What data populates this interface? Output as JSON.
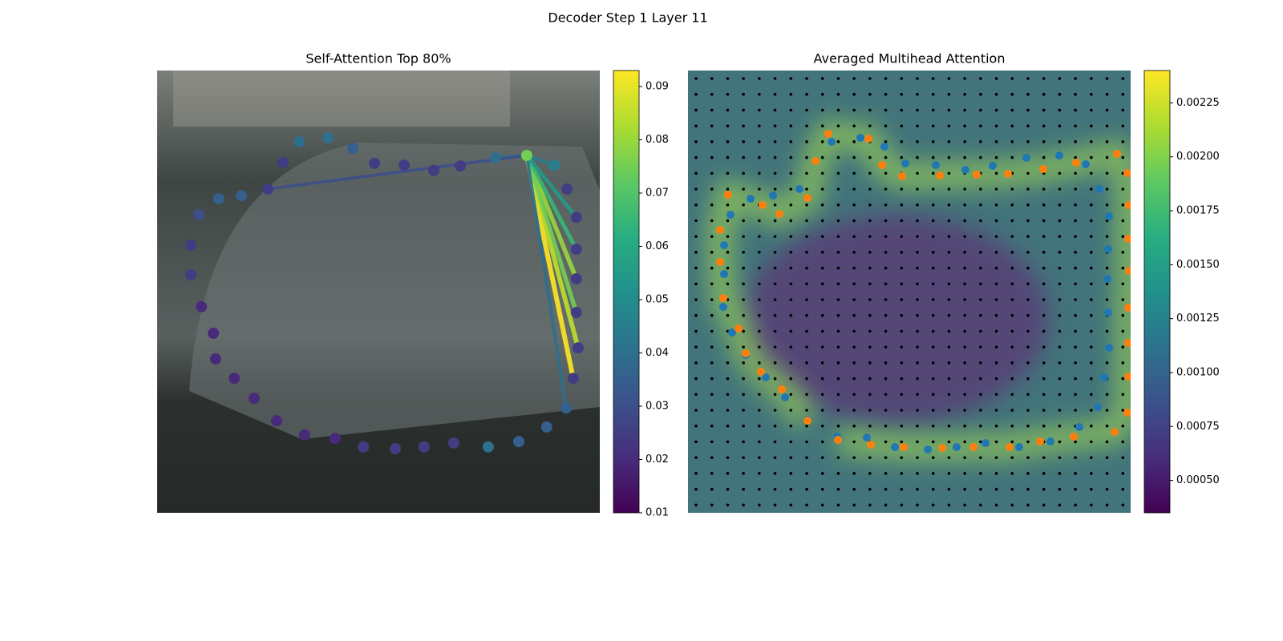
{
  "title": "Decoder Step 1 Layer 11",
  "chart_data": [
    {
      "type": "attention-lines",
      "title": "Self-Attention Top 80%",
      "xlim": [
        0,
        100
      ],
      "ylim": [
        100,
        0
      ],
      "colormap": "viridis",
      "clim": [
        0.01,
        0.093
      ],
      "cticks": [
        0.01,
        0.02,
        0.03,
        0.04,
        0.05,
        0.06,
        0.07,
        0.08,
        0.09
      ],
      "points": {
        "x": [
          83.5,
          89.7,
          92.6,
          94.7,
          94.7,
          94.7,
          94.7,
          95.1,
          94.0,
          92.4,
          88.0,
          81.7,
          74.8,
          67.0,
          60.3,
          53.8,
          46.6,
          40.2,
          33.3,
          27.0,
          21.9,
          17.4,
          13.2,
          12.7,
          10.0,
          7.6,
          7.6,
          9.4,
          13.9,
          19.0,
          25.0,
          28.4,
          32.1,
          38.6,
          44.2,
          49.1,
          55.8,
          62.5,
          68.5,
          76.4
        ],
        "y": [
          80.8,
          78.6,
          73.2,
          66.8,
          59.6,
          52.9,
          45.3,
          37.3,
          30.4,
          23.7,
          19.4,
          16.1,
          14.9,
          15.8,
          14.9,
          14.5,
          14.9,
          16.8,
          17.6,
          20.8,
          25.9,
          30.4,
          34.8,
          40.6,
          46.6,
          53.8,
          60.5,
          67.4,
          71.0,
          71.7,
          73.2,
          79.2,
          83.9,
          84.8,
          82.4,
          79.0,
          78.6,
          77.4,
          78.4,
          80.3
        ],
        "values": [
          0.075,
          0.045,
          0.025,
          0.025,
          0.025,
          0.025,
          0.025,
          0.025,
          0.025,
          0.035,
          0.035,
          0.035,
          0.04,
          0.025,
          0.025,
          0.025,
          0.025,
          0.02,
          0.02,
          0.02,
          0.02,
          0.02,
          0.02,
          0.02,
          0.02,
          0.025,
          0.025,
          0.03,
          0.035,
          0.035,
          0.025,
          0.025,
          0.04,
          0.04,
          0.035,
          0.025,
          0.025,
          0.025,
          0.025,
          0.04
        ]
      },
      "source": 0,
      "lines": {
        "targets": [
          8,
          7,
          5,
          6,
          4,
          3,
          1,
          9,
          39,
          30
        ],
        "values": [
          0.093,
          0.085,
          0.08,
          0.075,
          0.065,
          0.055,
          0.045,
          0.04,
          0.04,
          0.03
        ]
      }
    },
    {
      "type": "attention-heatmap",
      "title": "Averaged Multihead Attention",
      "xlim": [
        0,
        552
      ],
      "ylim": [
        552,
        0
      ],
      "colormap": "viridis",
      "clim": [
        0.00035,
        0.0024
      ],
      "cticks": [
        {
          "value": 0.0005,
          "label": "0.00050"
        },
        {
          "value": 0.00075,
          "label": "0.00075"
        },
        {
          "value": 0.001,
          "label": "0.00100"
        },
        {
          "value": 0.00125,
          "label": "0.00125"
        },
        {
          "value": 0.0015,
          "label": "0.00150"
        },
        {
          "value": 0.00175,
          "label": "0.00175"
        },
        {
          "value": 0.002,
          "label": "0.00200"
        },
        {
          "value": 0.00225,
          "label": "0.00225"
        }
      ],
      "series": [
        {
          "color": "#1f77b4",
          "x": [
            186,
            223,
            258,
            299,
            335,
            371,
            413,
            452,
            488,
            511,
            519,
            525,
            524,
            523,
            524,
            525,
            513,
            496,
            463,
            422,
            380,
            346,
            309,
            271,
            245,
            215,
            179,
            139,
            106,
            78,
            53,
            45,
            45,
            44,
            55,
            72,
            97,
            121,
            149
          ],
          "y": [
            95,
            94,
            82,
            79,
            82,
            87,
            82,
            89,
            107,
            132,
            169,
            206,
            250,
            292,
            329,
            370,
            404,
            435,
            446,
            443,
            433,
            428,
            434,
            436,
            457,
            468,
            463,
            404,
            396,
            392,
            372,
            334,
            298,
            257,
            225,
            197,
            169,
            144,
            116
          ]
        },
        {
          "color": "#ff7f0e",
          "x": [
            187,
            228,
            269,
            317,
            356,
            401,
            439,
            481,
            532,
            548,
            549,
            549,
            549,
            550,
            549,
            550,
            548,
            535,
            484,
            443,
            399,
            360,
            314,
            267,
            242,
            225,
            175,
            159,
            149,
            114,
            93,
            50,
            40,
            40,
            44,
            63,
            72,
            91,
            117,
            149
          ],
          "y": [
            91,
            85,
            82,
            81,
            82,
            82,
            89,
            95,
            101,
            125,
            170,
            212,
            256,
            302,
            342,
            384,
            424,
            448,
            437,
            429,
            423,
            422,
            421,
            420,
            434,
            467,
            473,
            439,
            393,
            373,
            384,
            397,
            353,
            313,
            268,
            230,
            199,
            176,
            154,
            115
          ]
        }
      ]
    }
  ]
}
